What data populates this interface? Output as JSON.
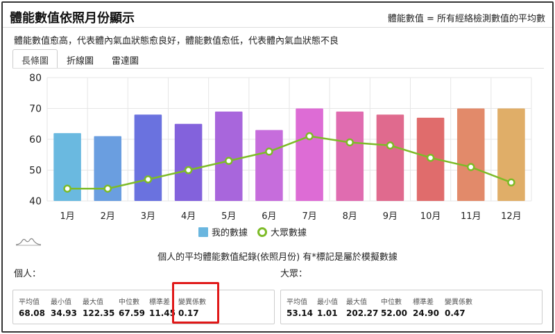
{
  "header": {
    "title": "體能數值依照月份顯示",
    "note": "體能數值 = 所有經絡檢測數值的平均數"
  },
  "subtitle": "體能數值愈高，代表體內氣血狀態愈良好，體能數值愈低，代表體內氣血狀態不良",
  "tabs": [
    {
      "label": "長條圖",
      "active": true
    },
    {
      "label": "折線圖",
      "active": false
    },
    {
      "label": "雷達圖",
      "active": false
    }
  ],
  "chart_data": {
    "type": "bar",
    "categories": [
      "1月",
      "2月",
      "3月",
      "4月",
      "5月",
      "6月",
      "7月",
      "8月",
      "9月",
      "10月",
      "11月",
      "12月"
    ],
    "ylim": [
      40,
      80
    ],
    "yticks": [
      40,
      50,
      60,
      70,
      80
    ],
    "grid": true,
    "legend_position": "bottom",
    "series": [
      {
        "name": "我的數據",
        "type": "bar",
        "values": [
          62,
          61,
          68,
          65,
          69,
          63,
          70,
          69,
          68,
          67,
          70,
          70
        ],
        "colors": [
          "#6ab9e0",
          "#6a9ee0",
          "#6a72df",
          "#8362dc",
          "#a866dc",
          "#c66ddc",
          "#dd6cd5",
          "#e06cb0",
          "#e06a8e",
          "#e06c6c",
          "#e28a6a",
          "#e0ae68"
        ]
      },
      {
        "name": "大眾數據",
        "type": "line",
        "color": "#7dbb27",
        "values": [
          44,
          44,
          47,
          50,
          53,
          56,
          61,
          59,
          58,
          54,
          51,
          46
        ]
      }
    ]
  },
  "legend": {
    "bar_label": "我的數據",
    "line_label": "大眾數據"
  },
  "section_title": "個人的平均體能數值紀錄(依照月份) 有*標記是屬於模擬數據",
  "personal": {
    "label": "個人：",
    "stats": [
      {
        "label": "平均值",
        "value": "68.08"
      },
      {
        "label": "最小值",
        "value": "34.93"
      },
      {
        "label": "最大值",
        "value": "122.35"
      },
      {
        "label": "中位數",
        "value": "67.59"
      },
      {
        "label": "標準差",
        "value": "11.45"
      },
      {
        "label": "變異係數",
        "value": "0.17"
      }
    ]
  },
  "public": {
    "label": "大眾：",
    "stats": [
      {
        "label": "平均值",
        "value": "53.14"
      },
      {
        "label": "最小值",
        "value": "1.01"
      },
      {
        "label": "最大值",
        "value": "202.27"
      },
      {
        "label": "中位數",
        "value": "52.00"
      },
      {
        "label": "標準差",
        "value": "24.90"
      },
      {
        "label": "變異係數",
        "value": "0.47"
      }
    ]
  },
  "colors": {
    "highlight": "#e01818",
    "line": "#7dbb27",
    "grid": "#e6e6e6"
  }
}
